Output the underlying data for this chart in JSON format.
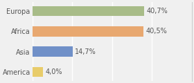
{
  "categories": [
    "America",
    "Asia",
    "Africa",
    "Europa"
  ],
  "values": [
    4.0,
    14.7,
    40.5,
    40.7
  ],
  "labels": [
    "4,0%",
    "14,7%",
    "40,5%",
    "40,7%"
  ],
  "bar_colors": [
    "#e8cc6a",
    "#7090c8",
    "#e8a870",
    "#a8bc88"
  ],
  "background_color": "#f0f0f0",
  "xlim": [
    0,
    58
  ],
  "bar_height": 0.5,
  "label_fontsize": 7,
  "tick_fontsize": 7,
  "grid_color": "#ffffff",
  "grid_xticks": [
    0,
    14.5,
    29,
    43.5,
    58
  ]
}
